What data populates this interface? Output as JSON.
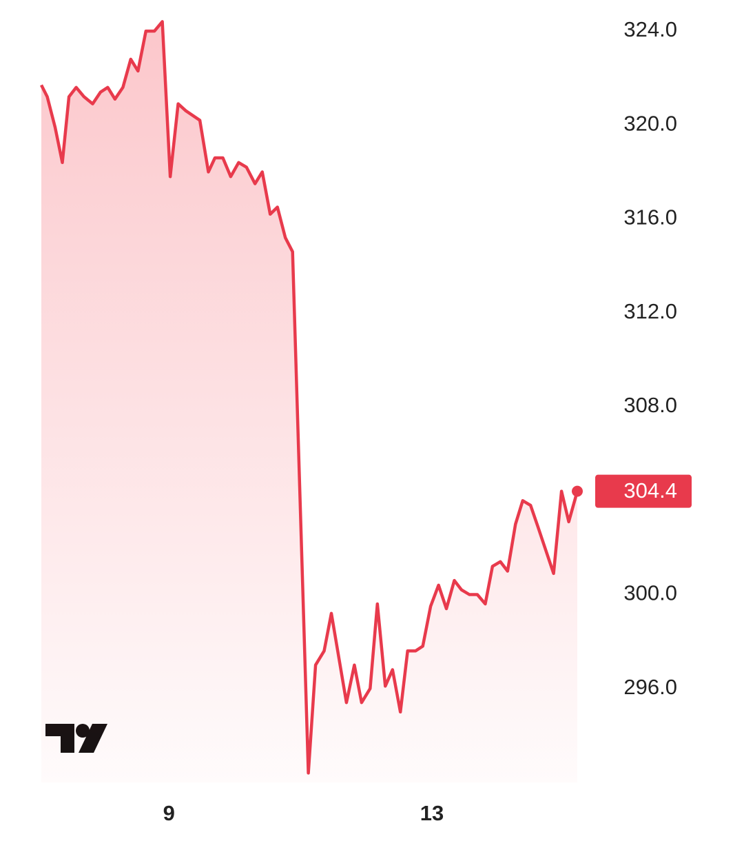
{
  "chart_data": {
    "type": "line",
    "x": [
      7.06,
      7.15,
      7.27,
      7.38,
      7.48,
      7.59,
      7.71,
      7.84,
      7.96,
      8.07,
      8.18,
      8.3,
      8.42,
      8.53,
      8.65,
      8.78,
      8.9,
      9.02,
      9.14,
      9.26,
      9.47,
      9.6,
      9.7,
      9.82,
      9.94,
      10.06,
      10.18,
      10.31,
      10.42,
      10.54,
      10.65,
      10.77,
      10.88,
      11.12,
      11.23,
      11.36,
      11.47,
      11.7,
      11.82,
      11.93,
      12.06,
      12.17,
      12.29,
      12.4,
      12.52,
      12.63,
      12.75,
      12.86,
      12.98,
      13.1,
      13.22,
      13.34,
      13.45,
      13.57,
      13.69,
      13.81,
      13.92,
      14.04,
      14.15,
      14.27,
      14.38,
      14.5,
      14.61,
      14.85,
      14.97,
      15.08,
      15.21
    ],
    "values": [
      321.7,
      321.2,
      319.9,
      318.4,
      321.2,
      321.6,
      321.2,
      320.9,
      321.4,
      321.6,
      321.1,
      321.6,
      322.8,
      322.3,
      324.0,
      324.0,
      324.4,
      317.8,
      320.9,
      320.6,
      320.2,
      318.0,
      318.6,
      318.6,
      317.8,
      318.4,
      318.2,
      317.5,
      318.0,
      316.2,
      316.5,
      315.2,
      314.6,
      292.4,
      297.0,
      297.6,
      299.2,
      295.4,
      297.0,
      295.4,
      296.0,
      299.6,
      296.1,
      296.8,
      295.0,
      297.6,
      297.6,
      297.8,
      299.5,
      300.4,
      299.4,
      300.6,
      300.2,
      300.0,
      300.0,
      299.6,
      301.2,
      301.4,
      301.0,
      303.0,
      304.0,
      303.8,
      302.9,
      300.9,
      304.4,
      303.1,
      304.4
    ],
    "color": "#e83a4c",
    "xlim": [
      7.06,
      15.21
    ],
    "ylim": [
      292,
      325
    ],
    "xticks": [
      9,
      13
    ],
    "yticks": [
      {
        "value": 324,
        "label": "324.0"
      },
      {
        "value": 320,
        "label": "320.0"
      },
      {
        "value": 316,
        "label": "316.0"
      },
      {
        "value": 312,
        "label": "312.0"
      },
      {
        "value": 308,
        "label": "308.0"
      },
      {
        "value": 300,
        "label": "300.0"
      },
      {
        "value": 296,
        "label": "296.0"
      }
    ]
  }
}
